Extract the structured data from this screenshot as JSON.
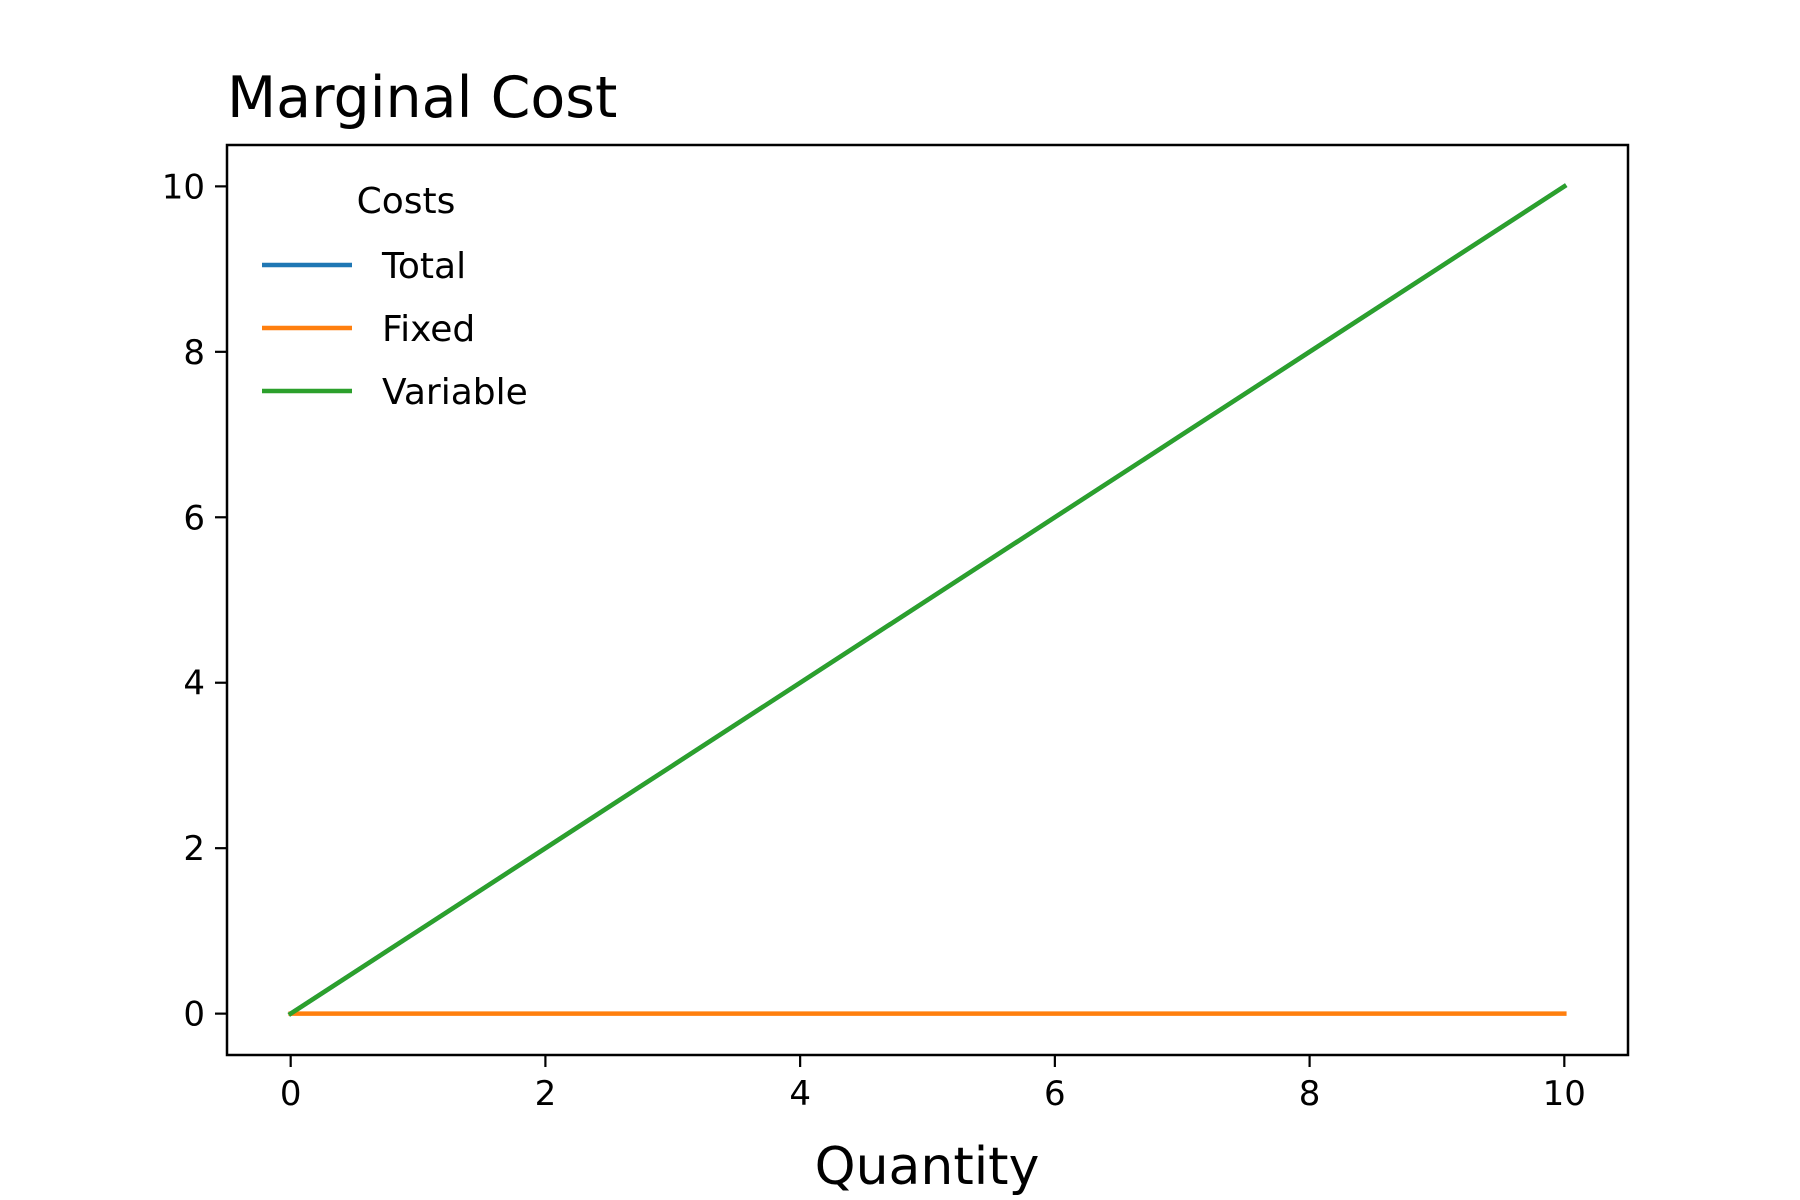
{
  "chart_data": {
    "type": "line",
    "title": "Marginal Cost",
    "xlabel": "Quantity",
    "ylabel": "",
    "xlim": [
      -0.5,
      10.5
    ],
    "ylim": [
      -0.5,
      10.5
    ],
    "x_ticks": [
      0,
      2,
      4,
      6,
      8,
      10
    ],
    "y_ticks": [
      0,
      2,
      4,
      6,
      8,
      10
    ],
    "x_tick_labels": [
      "0",
      "2",
      "4",
      "6",
      "8",
      "10"
    ],
    "y_tick_labels": [
      "0",
      "2",
      "4",
      "6",
      "8",
      "10"
    ],
    "grid": false,
    "legend": {
      "title": "Costs",
      "placement": "top-left",
      "frame": false
    },
    "series": [
      {
        "name": "Total",
        "color": "#1f77b4",
        "x": [
          0,
          1,
          2,
          3,
          4,
          5,
          6,
          7,
          8,
          9,
          10
        ],
        "y": [
          0,
          1,
          2,
          3,
          4,
          5,
          6,
          7,
          8,
          9,
          10
        ]
      },
      {
        "name": "Fixed",
        "color": "#ff7f0e",
        "x": [
          0,
          1,
          2,
          3,
          4,
          5,
          6,
          7,
          8,
          9,
          10
        ],
        "y": [
          0,
          0,
          0,
          0,
          0,
          0,
          0,
          0,
          0,
          0,
          0
        ]
      },
      {
        "name": "Variable",
        "color": "#2ca02c",
        "x": [
          0,
          1,
          2,
          3,
          4,
          5,
          6,
          7,
          8,
          9,
          10
        ],
        "y": [
          0,
          1,
          2,
          3,
          4,
          5,
          6,
          7,
          8,
          9,
          10
        ]
      }
    ]
  }
}
